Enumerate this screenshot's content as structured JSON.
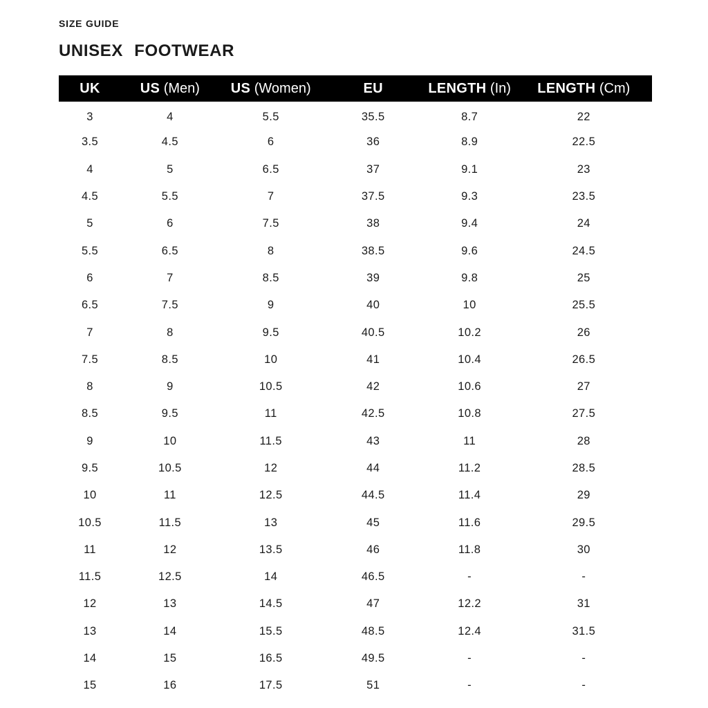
{
  "header": {
    "kicker": "SIZE GUIDE",
    "title": "UNISEX FOOTWEAR"
  },
  "table": {
    "columns": [
      {
        "bold": "UK",
        "light": "",
        "width": "10.5%"
      },
      {
        "bold": "US",
        "light": "(Men)",
        "width": "16.5%"
      },
      {
        "bold": "US",
        "light": "(Women)",
        "width": "17.5%"
      },
      {
        "bold": "EU",
        "light": "",
        "width": "17%"
      },
      {
        "bold": "LENGTH",
        "light": "(In)",
        "width": "15.5%"
      },
      {
        "bold": "LENGTH",
        "light": "(Cm)",
        "width": "23%"
      }
    ],
    "rows": [
      [
        "3",
        "4",
        "5.5",
        "35.5",
        "8.7",
        "22"
      ],
      [
        "3.5",
        "4.5",
        "6",
        "36",
        "8.9",
        "22.5"
      ],
      [
        "4",
        "5",
        "6.5",
        "37",
        "9.1",
        "23"
      ],
      [
        "4.5",
        "5.5",
        "7",
        "37.5",
        "9.3",
        "23.5"
      ],
      [
        "5",
        "6",
        "7.5",
        "38",
        "9.4",
        "24"
      ],
      [
        "5.5",
        "6.5",
        "8",
        "38.5",
        "9.6",
        "24.5"
      ],
      [
        "6",
        "7",
        "8.5",
        "39",
        "9.8",
        "25"
      ],
      [
        "6.5",
        "7.5",
        "9",
        "40",
        "10",
        "25.5"
      ],
      [
        "7",
        "8",
        "9.5",
        "40.5",
        "10.2",
        "26"
      ],
      [
        "7.5",
        "8.5",
        "10",
        "41",
        "10.4",
        "26.5"
      ],
      [
        "8",
        "9",
        "10.5",
        "42",
        "10.6",
        "27"
      ],
      [
        "8.5",
        "9.5",
        "11",
        "42.5",
        "10.8",
        "27.5"
      ],
      [
        "9",
        "10",
        "11.5",
        "43",
        "11",
        "28"
      ],
      [
        "9.5",
        "10.5",
        "12",
        "44",
        "11.2",
        "28.5"
      ],
      [
        "10",
        "11",
        "12.5",
        "44.5",
        "11.4",
        "29"
      ],
      [
        "10.5",
        "11.5",
        "13",
        "45",
        "11.6",
        "29.5"
      ],
      [
        "11",
        "12",
        "13.5",
        "46",
        "11.8",
        "30"
      ],
      [
        "11.5",
        "12.5",
        "14",
        "46.5",
        "-",
        "-"
      ],
      [
        "12",
        "13",
        "14.5",
        "47",
        "12.2",
        "31"
      ],
      [
        "13",
        "14",
        "15.5",
        "48.5",
        "12.4",
        "31.5"
      ],
      [
        "14",
        "15",
        "16.5",
        "49.5",
        "-",
        "-"
      ],
      [
        "15",
        "16",
        "17.5",
        "51",
        "-",
        "-"
      ]
    ]
  },
  "colors": {
    "page_bg": "#ffffff",
    "header_bg": "#000000",
    "header_text": "#ffffff",
    "body_text": "#1a1a1a"
  }
}
